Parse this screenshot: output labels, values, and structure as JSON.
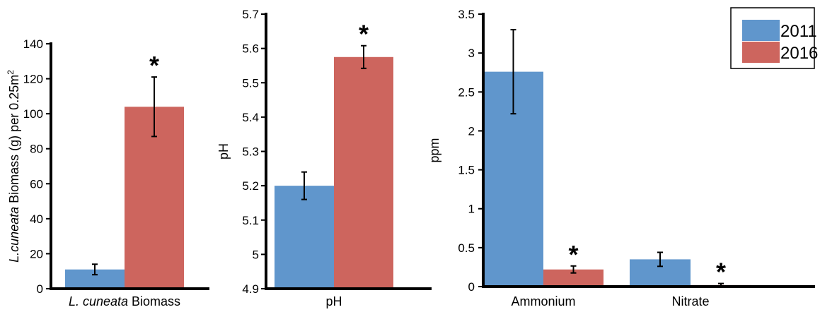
{
  "chart_data": [
    {
      "type": "bar",
      "categories": [
        "L. cuneata Biomass"
      ],
      "category_label_parts": [
        {
          "text": "L. cuneata",
          "italic": true
        },
        {
          "text": " Biomass",
          "italic": false
        }
      ],
      "ylabel_parts": [
        {
          "text": "L.cuneata",
          "italic": true
        },
        {
          "text": " Biomass (g) per 0.25m",
          "italic": false
        },
        {
          "text": "2",
          "sup": true
        }
      ],
      "ylim": [
        0,
        140
      ],
      "yticks": [
        0,
        20,
        40,
        60,
        80,
        100,
        120,
        140
      ],
      "series": [
        {
          "name": "2011",
          "values": [
            11
          ],
          "errors": [
            3
          ]
        },
        {
          "name": "2016",
          "values": [
            104
          ],
          "errors": [
            17
          ]
        }
      ],
      "significance": [
        {
          "category_index": 0,
          "series_index": 1,
          "label": "*"
        }
      ]
    },
    {
      "type": "bar",
      "categories": [
        "pH"
      ],
      "ylabel": "pH",
      "ylim": [
        4.9,
        5.7
      ],
      "yticks": [
        "4.9",
        "5",
        "5.1",
        "5.2",
        "5.3",
        "5.4",
        "5.5",
        "5.6",
        "5.7"
      ],
      "series": [
        {
          "name": "2011",
          "values": [
            5.2
          ],
          "errors": [
            0.04
          ]
        },
        {
          "name": "2016",
          "values": [
            5.575
          ],
          "errors": [
            0.033
          ]
        }
      ],
      "significance": [
        {
          "category_index": 0,
          "series_index": 1,
          "label": "*"
        }
      ]
    },
    {
      "type": "bar",
      "categories": [
        "Ammonium",
        "Nitrate"
      ],
      "ylabel": "ppm",
      "ylim": [
        0,
        3.5
      ],
      "yticks": [
        "0",
        "0.5",
        "1",
        "1.5",
        "2",
        "2.5",
        "3",
        "3.5"
      ],
      "series": [
        {
          "name": "2011",
          "values": [
            2.76,
            0.35
          ],
          "errors": [
            0.54,
            0.09
          ]
        },
        {
          "name": "2016",
          "values": [
            0.22,
            0.02
          ],
          "errors": [
            0.045,
            0.02
          ]
        }
      ],
      "legend": {
        "position": "top-right",
        "entries": [
          "2011",
          "2016"
        ]
      },
      "significance": [
        {
          "category_index": 0,
          "series_index": 1,
          "label": "*"
        },
        {
          "category_index": 1,
          "series_index": 1,
          "label": "*"
        }
      ]
    }
  ],
  "colors": {
    "2011": "#6096cc",
    "2016": "#cd655e",
    "axis": "#000000"
  }
}
